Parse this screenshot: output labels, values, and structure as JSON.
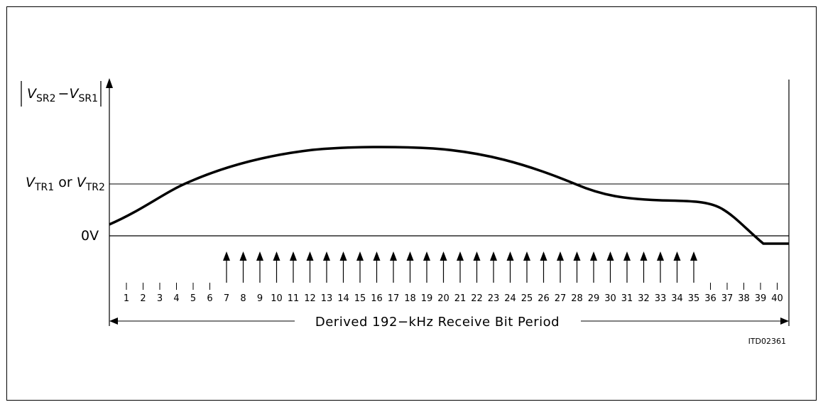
{
  "y_axis": {
    "label_main_1": "V",
    "label_sub_1": "SR2",
    "label_minus": "−",
    "label_main_2": "V",
    "label_sub_2": "SR1"
  },
  "levels": {
    "threshold_prefix": "V",
    "threshold_sub_1": "TR1",
    "threshold_or": " or ",
    "threshold_main_2": "V",
    "threshold_sub_2": "TR2",
    "zero": "0V"
  },
  "sample_positions": [
    "1",
    "2",
    "3",
    "4",
    "5",
    "6",
    "7",
    "8",
    "9",
    "10",
    "11",
    "12",
    "13",
    "14",
    "15",
    "16",
    "17",
    "18",
    "19",
    "20",
    "21",
    "22",
    "23",
    "24",
    "25",
    "26",
    "27",
    "28",
    "29",
    "30",
    "31",
    "32",
    "33",
    "34",
    "35",
    "36",
    "37",
    "38",
    "39",
    "40"
  ],
  "sample_arrow_range": [
    7,
    35
  ],
  "bottom_label": "Derived 192−kHz Receive Bit Period",
  "figure_code": "ITD02361"
}
